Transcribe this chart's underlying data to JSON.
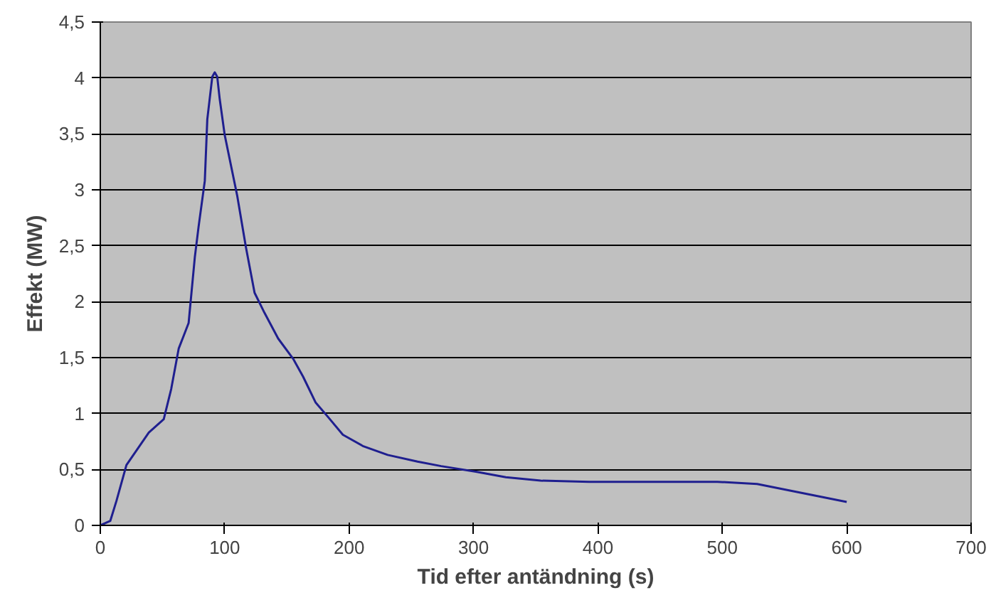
{
  "chart_data": {
    "type": "line",
    "xlabel": "Tid efter antändning (s)",
    "ylabel": "Effekt (MW)",
    "x": [
      0,
      8,
      13,
      21,
      39,
      51,
      57,
      63,
      71,
      76,
      79,
      84,
      86,
      90,
      92,
      94,
      96,
      100,
      110,
      117,
      124,
      132,
      143,
      155,
      163,
      173,
      183,
      195,
      211,
      231,
      255,
      274,
      302,
      326,
      354,
      393,
      496,
      528,
      600
    ],
    "series": [
      {
        "color": "#1f1f8f",
        "values": [
          0,
          0.04,
          0.22,
          0.54,
          0.83,
          0.95,
          1.22,
          1.58,
          1.81,
          2.4,
          2.67,
          3.08,
          3.63,
          4.01,
          4.05,
          4.01,
          3.81,
          3.49,
          2.95,
          2.49,
          2.08,
          1.9,
          1.67,
          1.49,
          1.33,
          1.1,
          0.97,
          0.81,
          0.71,
          0.63,
          0.57,
          0.53,
          0.48,
          0.43,
          0.4,
          0.39,
          0.39,
          0.37,
          0.21
        ]
      }
    ],
    "xlim": [
      0,
      700
    ],
    "xticks": [
      0,
      100,
      200,
      300,
      400,
      500,
      600,
      700
    ],
    "ylim": [
      0,
      4.5
    ],
    "yticks": [
      0,
      {
        "value": 0.5,
        "label": "0,5"
      },
      1,
      {
        "value": 1.5,
        "label": "1,5"
      },
      2,
      {
        "value": 2.5,
        "label": "2,5"
      },
      3,
      {
        "value": 3.5,
        "label": "3,5"
      },
      4,
      {
        "value": 4.5,
        "label": "4,5"
      }
    ],
    "grid": "y",
    "marker": "none",
    "line_style": "solid"
  }
}
